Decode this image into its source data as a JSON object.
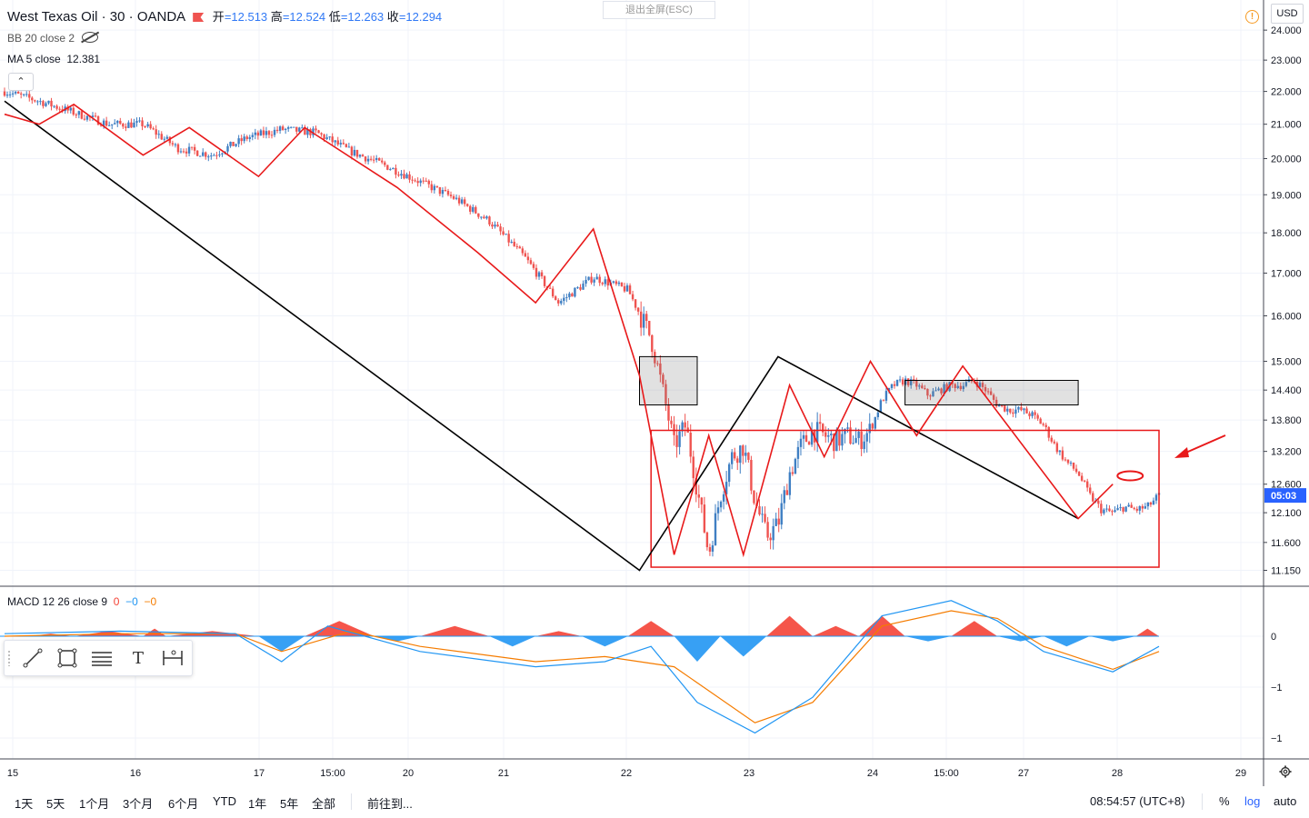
{
  "header": {
    "symbol": "West Texas Oil · 30 · OANDA",
    "open_label": "开",
    "open": "=12.513",
    "high_label": "高",
    "high": "=12.524",
    "low_label": "低",
    "low": "=12.263",
    "close_label": "收",
    "close": "=12.294"
  },
  "indicators": {
    "bb": "BB 20 close 2",
    "ma": "MA 5 close",
    "ma_value": "12.381",
    "macd": "MACD 12 26 close 9",
    "macd_v1": "0",
    "macd_v2": "−0",
    "macd_v3": "−0"
  },
  "esc_button": "退出全屏(ESC)",
  "currency": "USD",
  "warning_icon": "!",
  "toolbar": {
    "icons": [
      "trend-line-icon",
      "rectangle-icon",
      "fib-channel-icon",
      "text-icon",
      "measure-icon"
    ],
    "text_glyph": "T"
  },
  "bottom_bar": {
    "ranges": [
      "1天",
      "5天",
      "1个月",
      "3个月",
      "6个月",
      "YTD",
      "1年",
      "5年",
      "全部"
    ],
    "goto": "前往到...",
    "clock": "08:54:57 (UTC+8)",
    "percent": "%",
    "log": "log",
    "auto": "auto"
  },
  "colors": {
    "up": "#3f7fc3",
    "down": "#ef5350",
    "annotation": "#e8191a",
    "trend": "#000000",
    "price_tag": "#2962ff",
    "macd_line": "#2196f3",
    "signal_line": "#f57c00",
    "hist_pos": "#f44336",
    "hist_neg": "#2196f3"
  },
  "chart_data": {
    "type": "line",
    "title": "West Texas Oil · 30 · OANDA",
    "xlabel": "",
    "ylabel": "",
    "y_scale": "log",
    "ylim": [
      11.0,
      24.6
    ],
    "y_ticks": [
      "24.000",
      "23.000",
      "22.000",
      "21.000",
      "20.000",
      "19.000",
      "18.000",
      "17.000",
      "16.000",
      "15.000",
      "14.400",
      "13.800",
      "13.200",
      "12.600",
      "12.100",
      "11.600",
      "11.150"
    ],
    "x_ticks": [
      "15",
      "16",
      "17",
      "15:00",
      "20",
      "21",
      "22",
      "23",
      "24",
      "15:00",
      "27",
      "28",
      "29"
    ],
    "current_price_label": "05:03",
    "macd_ticks": [
      "0",
      "−1",
      "−1"
    ],
    "price_path": [
      [
        0,
        22.0
      ],
      [
        3,
        21.7
      ],
      [
        6,
        21.35
      ],
      [
        9,
        21.0
      ],
      [
        12,
        21.0
      ],
      [
        15,
        20.3
      ],
      [
        18,
        20.1
      ],
      [
        21,
        20.6
      ],
      [
        24,
        20.85
      ],
      [
        27,
        20.75
      ],
      [
        30,
        20.2
      ],
      [
        33,
        19.8
      ],
      [
        36,
        19.35
      ],
      [
        39,
        18.9
      ],
      [
        42,
        18.3
      ],
      [
        45,
        17.4
      ],
      [
        48,
        16.3
      ],
      [
        51,
        16.9
      ],
      [
        54,
        16.6
      ],
      [
        56,
        15.5
      ],
      [
        57,
        14.4
      ],
      [
        58,
        13.3
      ],
      [
        59,
        13.7
      ],
      [
        60,
        12.5
      ],
      [
        61,
        11.4
      ],
      [
        62,
        12.4
      ],
      [
        63,
        13.1
      ],
      [
        64,
        13.3
      ],
      [
        65,
        12.3
      ],
      [
        66,
        11.7
      ],
      [
        67,
        11.9
      ],
      [
        68,
        12.8
      ],
      [
        69,
        13.3
      ],
      [
        70,
        13.6
      ],
      [
        71,
        13.5
      ],
      [
        72,
        13.4
      ],
      [
        73,
        13.5
      ],
      [
        74,
        13.4
      ],
      [
        75,
        13.6
      ],
      [
        76,
        14.2
      ],
      [
        77,
        14.5
      ],
      [
        78,
        14.6
      ],
      [
        79,
        14.5
      ],
      [
        80,
        14.3
      ],
      [
        81,
        14.4
      ],
      [
        82,
        14.5
      ],
      [
        83,
        14.5
      ],
      [
        84,
        14.6
      ],
      [
        85,
        14.4
      ],
      [
        86,
        14.1
      ],
      [
        87,
        14.0
      ],
      [
        88,
        14.0
      ],
      [
        89,
        13.9
      ],
      [
        90,
        13.7
      ],
      [
        91,
        13.3
      ],
      [
        92,
        13.0
      ],
      [
        93,
        12.8
      ],
      [
        94,
        12.4
      ],
      [
        95,
        12.15
      ],
      [
        96,
        12.1
      ],
      [
        97,
        12.2
      ],
      [
        98,
        12.15
      ],
      [
        99,
        12.2
      ],
      [
        100,
        12.4
      ]
    ],
    "annotation_zigzag": [
      [
        0,
        21.3
      ],
      [
        3,
        21.0
      ],
      [
        6,
        21.6
      ],
      [
        12,
        20.1
      ],
      [
        16,
        20.9
      ],
      [
        22,
        19.5
      ],
      [
        26,
        20.9
      ],
      [
        34,
        19.2
      ],
      [
        41,
        17.5
      ],
      [
        46,
        16.3
      ],
      [
        51,
        18.1
      ],
      [
        55,
        14.7
      ],
      [
        58,
        11.4
      ],
      [
        61,
        13.5
      ],
      [
        64,
        11.4
      ],
      [
        68,
        14.5
      ],
      [
        71,
        13.1
      ],
      [
        75,
        15.0
      ],
      [
        79,
        13.5
      ],
      [
        83,
        14.9
      ],
      [
        93,
        12.0
      ],
      [
        96,
        12.6
      ]
    ],
    "trend_line_black": [
      [
        0,
        21.7
      ],
      [
        55,
        11.15
      ],
      [
        67,
        15.1
      ],
      [
        93,
        12.0
      ]
    ],
    "boxes": [
      {
        "kind": "consolidation",
        "x": [
          55,
          60
        ],
        "y": [
          14.1,
          15.1
        ]
      },
      {
        "kind": "consolidation",
        "x": [
          78,
          93
        ],
        "y": [
          14.1,
          14.6
        ]
      },
      {
        "kind": "range",
        "x": [
          56,
          100
        ],
        "y": [
          11.2,
          13.6
        ]
      }
    ],
    "target_marker": {
      "x": 97.5,
      "y": 12.75
    },
    "macd": {
      "line": [
        [
          0,
          0.05
        ],
        [
          10,
          0.1
        ],
        [
          20,
          0.05
        ],
        [
          24,
          -0.5
        ],
        [
          28,
          0.2
        ],
        [
          36,
          -0.3
        ],
        [
          46,
          -0.6
        ],
        [
          52,
          -0.5
        ],
        [
          56,
          -0.2
        ],
        [
          60,
          -1.3
        ],
        [
          65,
          -1.9
        ],
        [
          70,
          -1.2
        ],
        [
          76,
          0.4
        ],
        [
          82,
          0.7
        ],
        [
          86,
          0.3
        ],
        [
          90,
          -0.3
        ],
        [
          96,
          -0.7
        ],
        [
          100,
          -0.2
        ]
      ],
      "signal": [
        [
          0,
          0.0
        ],
        [
          10,
          0.05
        ],
        [
          20,
          0.05
        ],
        [
          24,
          -0.3
        ],
        [
          30,
          0.1
        ],
        [
          36,
          -0.2
        ],
        [
          46,
          -0.5
        ],
        [
          52,
          -0.4
        ],
        [
          58,
          -0.6
        ],
        [
          65,
          -1.7
        ],
        [
          70,
          -1.3
        ],
        [
          76,
          0.2
        ],
        [
          82,
          0.5
        ],
        [
          86,
          0.35
        ],
        [
          90,
          -0.2
        ],
        [
          96,
          -0.65
        ],
        [
          100,
          -0.3
        ]
      ],
      "histogram": [
        [
          2,
          0.05
        ],
        [
          6,
          0.1
        ],
        [
          12,
          0.15
        ],
        [
          14,
          0.1
        ],
        [
          22,
          -0.3
        ],
        [
          26,
          0.3
        ],
        [
          32,
          -0.1
        ],
        [
          36,
          0.2
        ],
        [
          42,
          -0.2
        ],
        [
          46,
          0.1
        ],
        [
          50,
          -0.2
        ],
        [
          54,
          0.3
        ],
        [
          58,
          -0.5
        ],
        [
          62,
          -0.4
        ],
        [
          66,
          0.4
        ],
        [
          70,
          0.2
        ],
        [
          74,
          0.4
        ],
        [
          78,
          -0.1
        ],
        [
          82,
          0.3
        ],
        [
          86,
          -0.1
        ],
        [
          90,
          -0.2
        ],
        [
          94,
          -0.1
        ],
        [
          98,
          0.15
        ],
        [
          100,
          0.18
        ]
      ]
    }
  }
}
